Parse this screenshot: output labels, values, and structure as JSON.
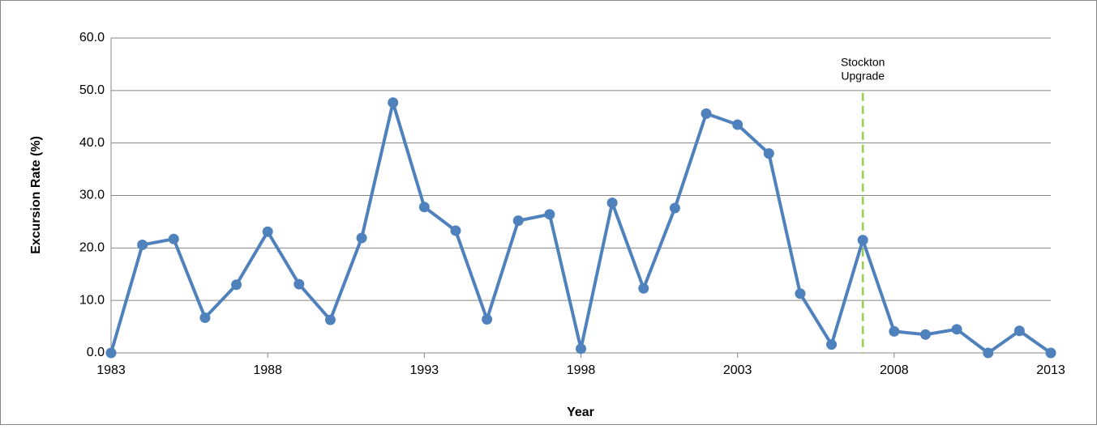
{
  "chart_data": {
    "type": "line",
    "x_label": "Year",
    "y_label": "Excursion Rate (%)",
    "x": [
      1983,
      1984,
      1985,
      1986,
      1987,
      1988,
      1989,
      1990,
      1991,
      1992,
      1993,
      1994,
      1995,
      1996,
      1997,
      1998,
      1999,
      2000,
      2001,
      2002,
      2003,
      2004,
      2005,
      2006,
      2007,
      2008,
      2009,
      2010,
      2011,
      2012,
      2013
    ],
    "series": [
      {
        "name": "Excursion Rate",
        "color": "#4f81bd",
        "values": [
          0,
          20.6,
          21.7,
          6.7,
          13.0,
          23.1,
          13.1,
          6.3,
          21.9,
          47.7,
          27.8,
          23.3,
          6.4,
          25.2,
          26.4,
          0.8,
          28.6,
          12.3,
          27.6,
          45.6,
          43.5,
          38.0,
          11.3,
          1.6,
          21.5,
          4.1,
          3.5,
          4.5,
          0,
          4.2,
          0
        ]
      }
    ],
    "xlim": [
      1983,
      2013
    ],
    "xticks": [
      1983,
      1988,
      1993,
      1998,
      2003,
      2008,
      2013
    ],
    "ylim": [
      0,
      60
    ],
    "yticks": [
      {
        "value": 0,
        "label": "0.0"
      },
      {
        "value": 10,
        "label": "10.0"
      },
      {
        "value": 20,
        "label": "20.0"
      },
      {
        "value": 30,
        "label": "30.0"
      },
      {
        "value": 40,
        "label": "40.0"
      },
      {
        "value": 50,
        "label": "50.0"
      },
      {
        "value": 60,
        "label": "60.0"
      }
    ],
    "grid": true,
    "annotation": {
      "x": 2007,
      "lines": [
        "Stockton",
        "Upgrade"
      ],
      "color": "#92d050"
    }
  }
}
